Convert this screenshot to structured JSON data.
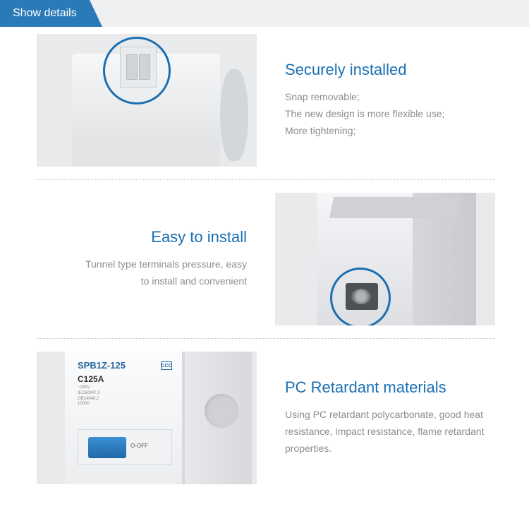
{
  "header": {
    "title": "Show details"
  },
  "colors": {
    "accent": "#1a6fb3",
    "header_bg": "#2b7ab8",
    "header_strip": "#eef0f2",
    "text_muted": "#8a8d90",
    "divider": "#c0c4c8"
  },
  "sections": [
    {
      "layout": "image-left",
      "title": "Securely installed",
      "desc_lines": [
        "Snap removable;",
        "The new design is more flexible use;",
        "More tightening;"
      ],
      "image": {
        "kind": "product-top-clip",
        "highlight_circle": {
          "color": "#1a6fb3",
          "stroke": 3
        }
      }
    },
    {
      "layout": "image-right",
      "title": "Easy to install",
      "desc_lines": [
        "Tunnel type terminals pressure, easy",
        "to install and convenient"
      ],
      "image": {
        "kind": "product-angle-terminal",
        "highlight_circle": {
          "color": "#1a6fb3",
          "stroke": 3
        }
      }
    },
    {
      "layout": "image-left",
      "title": "PC Retardant materials",
      "desc_lines": [
        "Using PC retardant polycarbonate, good heat resistance, impact resistance, flame retardant properties."
      ],
      "image": {
        "kind": "product-front-label",
        "label": {
          "model": "SPB1Z-125",
          "rating": "C125A",
          "cert": "CCC",
          "small_text": [
            "~230V",
            "IEC60947.2",
            "GB14048.2",
            "10000"
          ],
          "switch_color": "#2b7ab8",
          "switch_text": "O-OFF"
        }
      }
    }
  ]
}
